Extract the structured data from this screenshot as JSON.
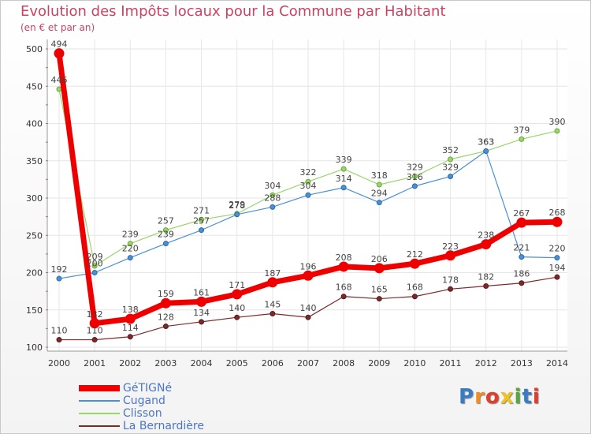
{
  "header": {
    "title": "Evolution des Impôts locaux pour la Commune par Habitant",
    "subtitle": "(en € et par an)"
  },
  "logo": {
    "text": "Proxiti",
    "colors": [
      "#3a7cc4",
      "#f28c1c",
      "#e23c2c",
      "#f2c21c",
      "#56a838",
      "#3a7cc4",
      "#e23c2c"
    ]
  },
  "chart_data": {
    "type": "line",
    "title": "Evolution des Impôts locaux pour la Commune par Habitant",
    "ylabel": "(en € et par an)",
    "xlabel": "",
    "ylim": [
      100,
      500
    ],
    "yticks": [
      100,
      150,
      200,
      250,
      300,
      350,
      400,
      450,
      500
    ],
    "grid": true,
    "legend_position": "bottom-left",
    "x": [
      "2000",
      "2001",
      "2002",
      "2003",
      "2004",
      "2005",
      "2006",
      "2007",
      "2008",
      "2009",
      "2010",
      "2011",
      "2012",
      "2013",
      "2014"
    ],
    "series": [
      {
        "name": "La Bernardière",
        "color": "#7b2a2a",
        "values": [
          110,
          110,
          114,
          128,
          134,
          140,
          145,
          140,
          168,
          165,
          168,
          178,
          182,
          186,
          194
        ]
      },
      {
        "name": "Clisson",
        "color": "#9ad46a",
        "values": [
          446,
          209,
          239,
          257,
          271,
          279,
          304,
          322,
          339,
          318,
          329,
          352,
          363,
          379,
          390
        ]
      },
      {
        "name": "Cugand",
        "color": "#4a90d4",
        "values": [
          192,
          200,
          220,
          239,
          257,
          278,
          288,
          304,
          314,
          294,
          316,
          329,
          363,
          221,
          220
        ]
      },
      {
        "name": "GéTIGNé",
        "color": "#ee0000",
        "values": [
          494,
          132,
          138,
          159,
          161,
          171,
          187,
          196,
          208,
          206,
          212,
          223,
          238,
          267,
          268
        ]
      }
    ],
    "legend_order": [
      "GéTIGNé",
      "Cugand",
      "Clisson",
      "La Bernardière"
    ]
  }
}
